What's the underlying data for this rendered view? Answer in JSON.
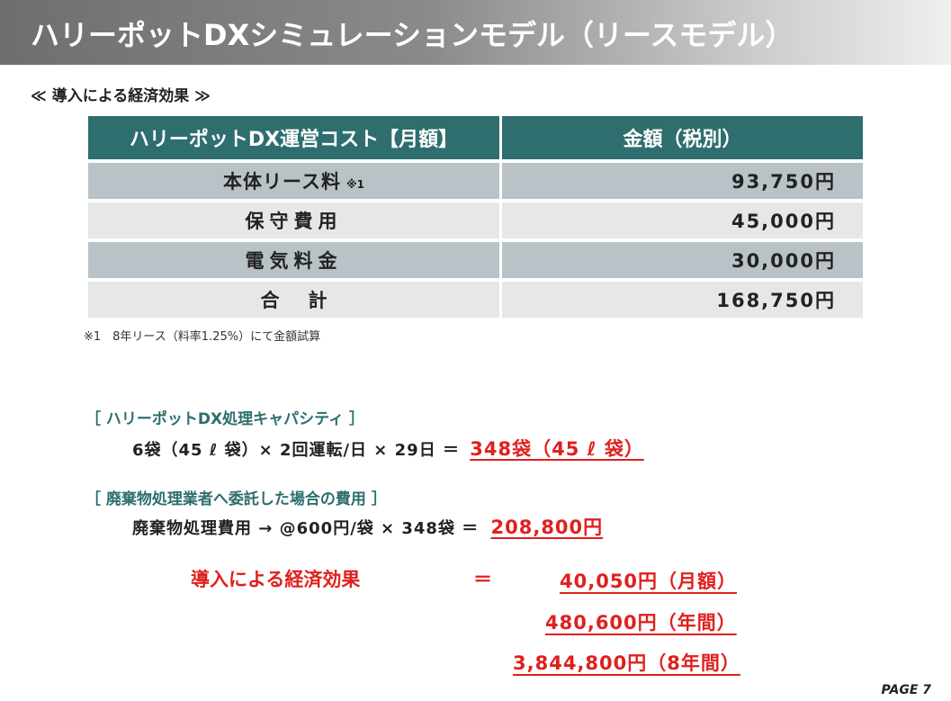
{
  "title": "ハリーポットDXシミュレーションモデル（リースモデル）",
  "section_heading": "≪ 導入による経済効果 ≫",
  "cost_table": {
    "headers": [
      "ハリーポットDX運営コスト【月額】",
      "金額（税別）"
    ],
    "rows": [
      {
        "item": "本体リース料",
        "note": "※1",
        "amount": "93,750円"
      },
      {
        "item": "保守費用",
        "amount": "45,000円"
      },
      {
        "item": "電気料金",
        "amount": "30,000円"
      },
      {
        "item": "合計",
        "amount": "168,750円"
      }
    ]
  },
  "footnote": "※1　8年リース（料率1.25%）にて金額試算",
  "capacity": {
    "label": "［ ハリーポットDX処理キャパシティ ］",
    "formula": "6袋（45 ℓ 袋）× 2回運転/日 × 29日 ＝",
    "result": "348袋（45 ℓ 袋）"
  },
  "waste_cost": {
    "label": "［ 廃棄物処理業者へ委託した場合の費用 ］",
    "formula": "廃棄物処理費用 → @600円/袋 × 348袋 ＝",
    "result": "208,800円"
  },
  "economic_effect": {
    "label": "導入による経済効果",
    "equals": "＝",
    "monthly": "40,050円（月額）",
    "yearly": "480,600円（年間）",
    "eight_years": "3,844,800円（8年間）"
  },
  "page_number": "PAGE 7"
}
